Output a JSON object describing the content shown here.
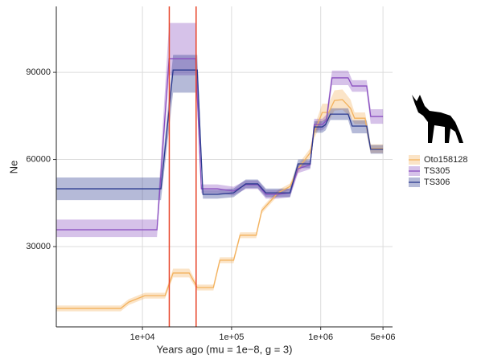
{
  "chart_data": {
    "type": "line",
    "x_label": "Years ago (mu = 1e−8, g = 3)",
    "y_label": "Ne",
    "xscale": "log",
    "xlim": [
      1080,
      6400000
    ],
    "ylim": [
      2350,
      112700
    ],
    "xticks": [
      {
        "value": 10000,
        "label": "1e+04"
      },
      {
        "value": 100000,
        "label": "1e+05"
      },
      {
        "value": 1000000,
        "label": "1e+06"
      },
      {
        "value": 5000000,
        "label": "5e+06"
      }
    ],
    "yticks": [
      30000,
      60000,
      90000
    ],
    "grid": true,
    "legend": "right",
    "vlines": [
      20000,
      40000
    ],
    "vline_color": "#e8462b",
    "series": [
      {
        "name": "Oto158128",
        "color": "#f3b25e",
        "x": [
          1080,
          5700,
          7020,
          10640,
          17920,
          22080,
          33500,
          41230,
          62500,
          73900,
          105400,
          124500,
          188800,
          218400,
          331400,
          452800,
          558000,
          762300,
          846600,
          1042000,
          1230000,
          1427000,
          1755000,
          2163000,
          2400000,
          3145000,
          3640000,
          5000000
        ],
        "values": [
          8700,
          8700,
          10900,
          13100,
          13100,
          20900,
          20900,
          15900,
          15900,
          25300,
          25300,
          33900,
          33900,
          42400,
          48500,
          50700,
          56800,
          62300,
          69300,
          76200,
          76200,
          80300,
          80600,
          77600,
          74200,
          74200,
          63700,
          63700
        ],
        "lower": [
          7700,
          7700,
          9900,
          12100,
          12100,
          19400,
          19400,
          14900,
          14900,
          24300,
          24300,
          32900,
          32900,
          41400,
          47500,
          49700,
          55300,
          60800,
          67300,
          73200,
          73200,
          76800,
          77100,
          74600,
          72200,
          72200,
          62200,
          62200
        ],
        "upper": [
          9700,
          9700,
          11900,
          14100,
          14100,
          22400,
          22400,
          16900,
          16900,
          26300,
          26300,
          34900,
          34900,
          43400,
          49500,
          51700,
          58300,
          63800,
          71300,
          79200,
          79200,
          83800,
          84100,
          80600,
          76200,
          76200,
          65200,
          65200
        ]
      },
      {
        "name": "TS305",
        "color": "#8a4fc0",
        "x": [
          1080,
          14550,
          19900,
          33500,
          39550,
          45800,
          69500,
          105400,
          143900,
          196800,
          242600,
          331400,
          452800,
          558000,
          762300,
          846600,
          1042000,
          1157000,
          1340000,
          2032000,
          2256000,
          3281000,
          3640000,
          5000000
        ],
        "values": [
          35800,
          35800,
          94700,
          94700,
          94700,
          49900,
          49900,
          49100,
          51300,
          51300,
          48000,
          48000,
          48500,
          56800,
          58200,
          72000,
          72000,
          73400,
          88100,
          88100,
          85300,
          85300,
          74800,
          74800
        ],
        "lower": [
          33300,
          33300,
          89000,
          89000,
          89000,
          48400,
          48400,
          47600,
          49800,
          49800,
          46500,
          46500,
          47000,
          55300,
          56700,
          70000,
          70000,
          71400,
          85600,
          85600,
          83300,
          83300,
          72300,
          72300
        ],
        "upper": [
          39300,
          39300,
          107000,
          107000,
          107000,
          51400,
          51400,
          50600,
          52800,
          52800,
          49500,
          49500,
          50000,
          58300,
          59700,
          74000,
          74000,
          75400,
          90600,
          90600,
          87300,
          87300,
          77300,
          77300
        ]
      },
      {
        "name": "TS306",
        "color": "#2b3a8f",
        "x": [
          1080,
          16140,
          22080,
          37150,
          41230,
          47700,
          69500,
          105400,
          143900,
          196800,
          242600,
          331400,
          452800,
          558000,
          762300,
          846600,
          1042000,
          1133000,
          1285000,
          2032000,
          2256000,
          3281000,
          3640000,
          5000000
        ],
        "values": [
          49900,
          49900,
          90800,
          90800,
          90800,
          48000,
          48000,
          48500,
          51600,
          51600,
          48500,
          48500,
          48500,
          58500,
          58500,
          71200,
          71200,
          72000,
          75600,
          75600,
          71500,
          71500,
          63500,
          63500
        ],
        "lower": [
          46000,
          46000,
          83000,
          83000,
          83000,
          46500,
          46500,
          47000,
          50100,
          50100,
          47000,
          47000,
          47000,
          57000,
          57000,
          69200,
          69200,
          70000,
          73600,
          73600,
          69000,
          69000,
          62000,
          62000
        ],
        "upper": [
          53800,
          53800,
          96000,
          96000,
          96000,
          49500,
          49500,
          50000,
          53100,
          53100,
          50000,
          50000,
          50000,
          60000,
          60000,
          73200,
          73200,
          74000,
          77600,
          77600,
          73500,
          73500,
          65000,
          65000
        ]
      }
    ]
  }
}
